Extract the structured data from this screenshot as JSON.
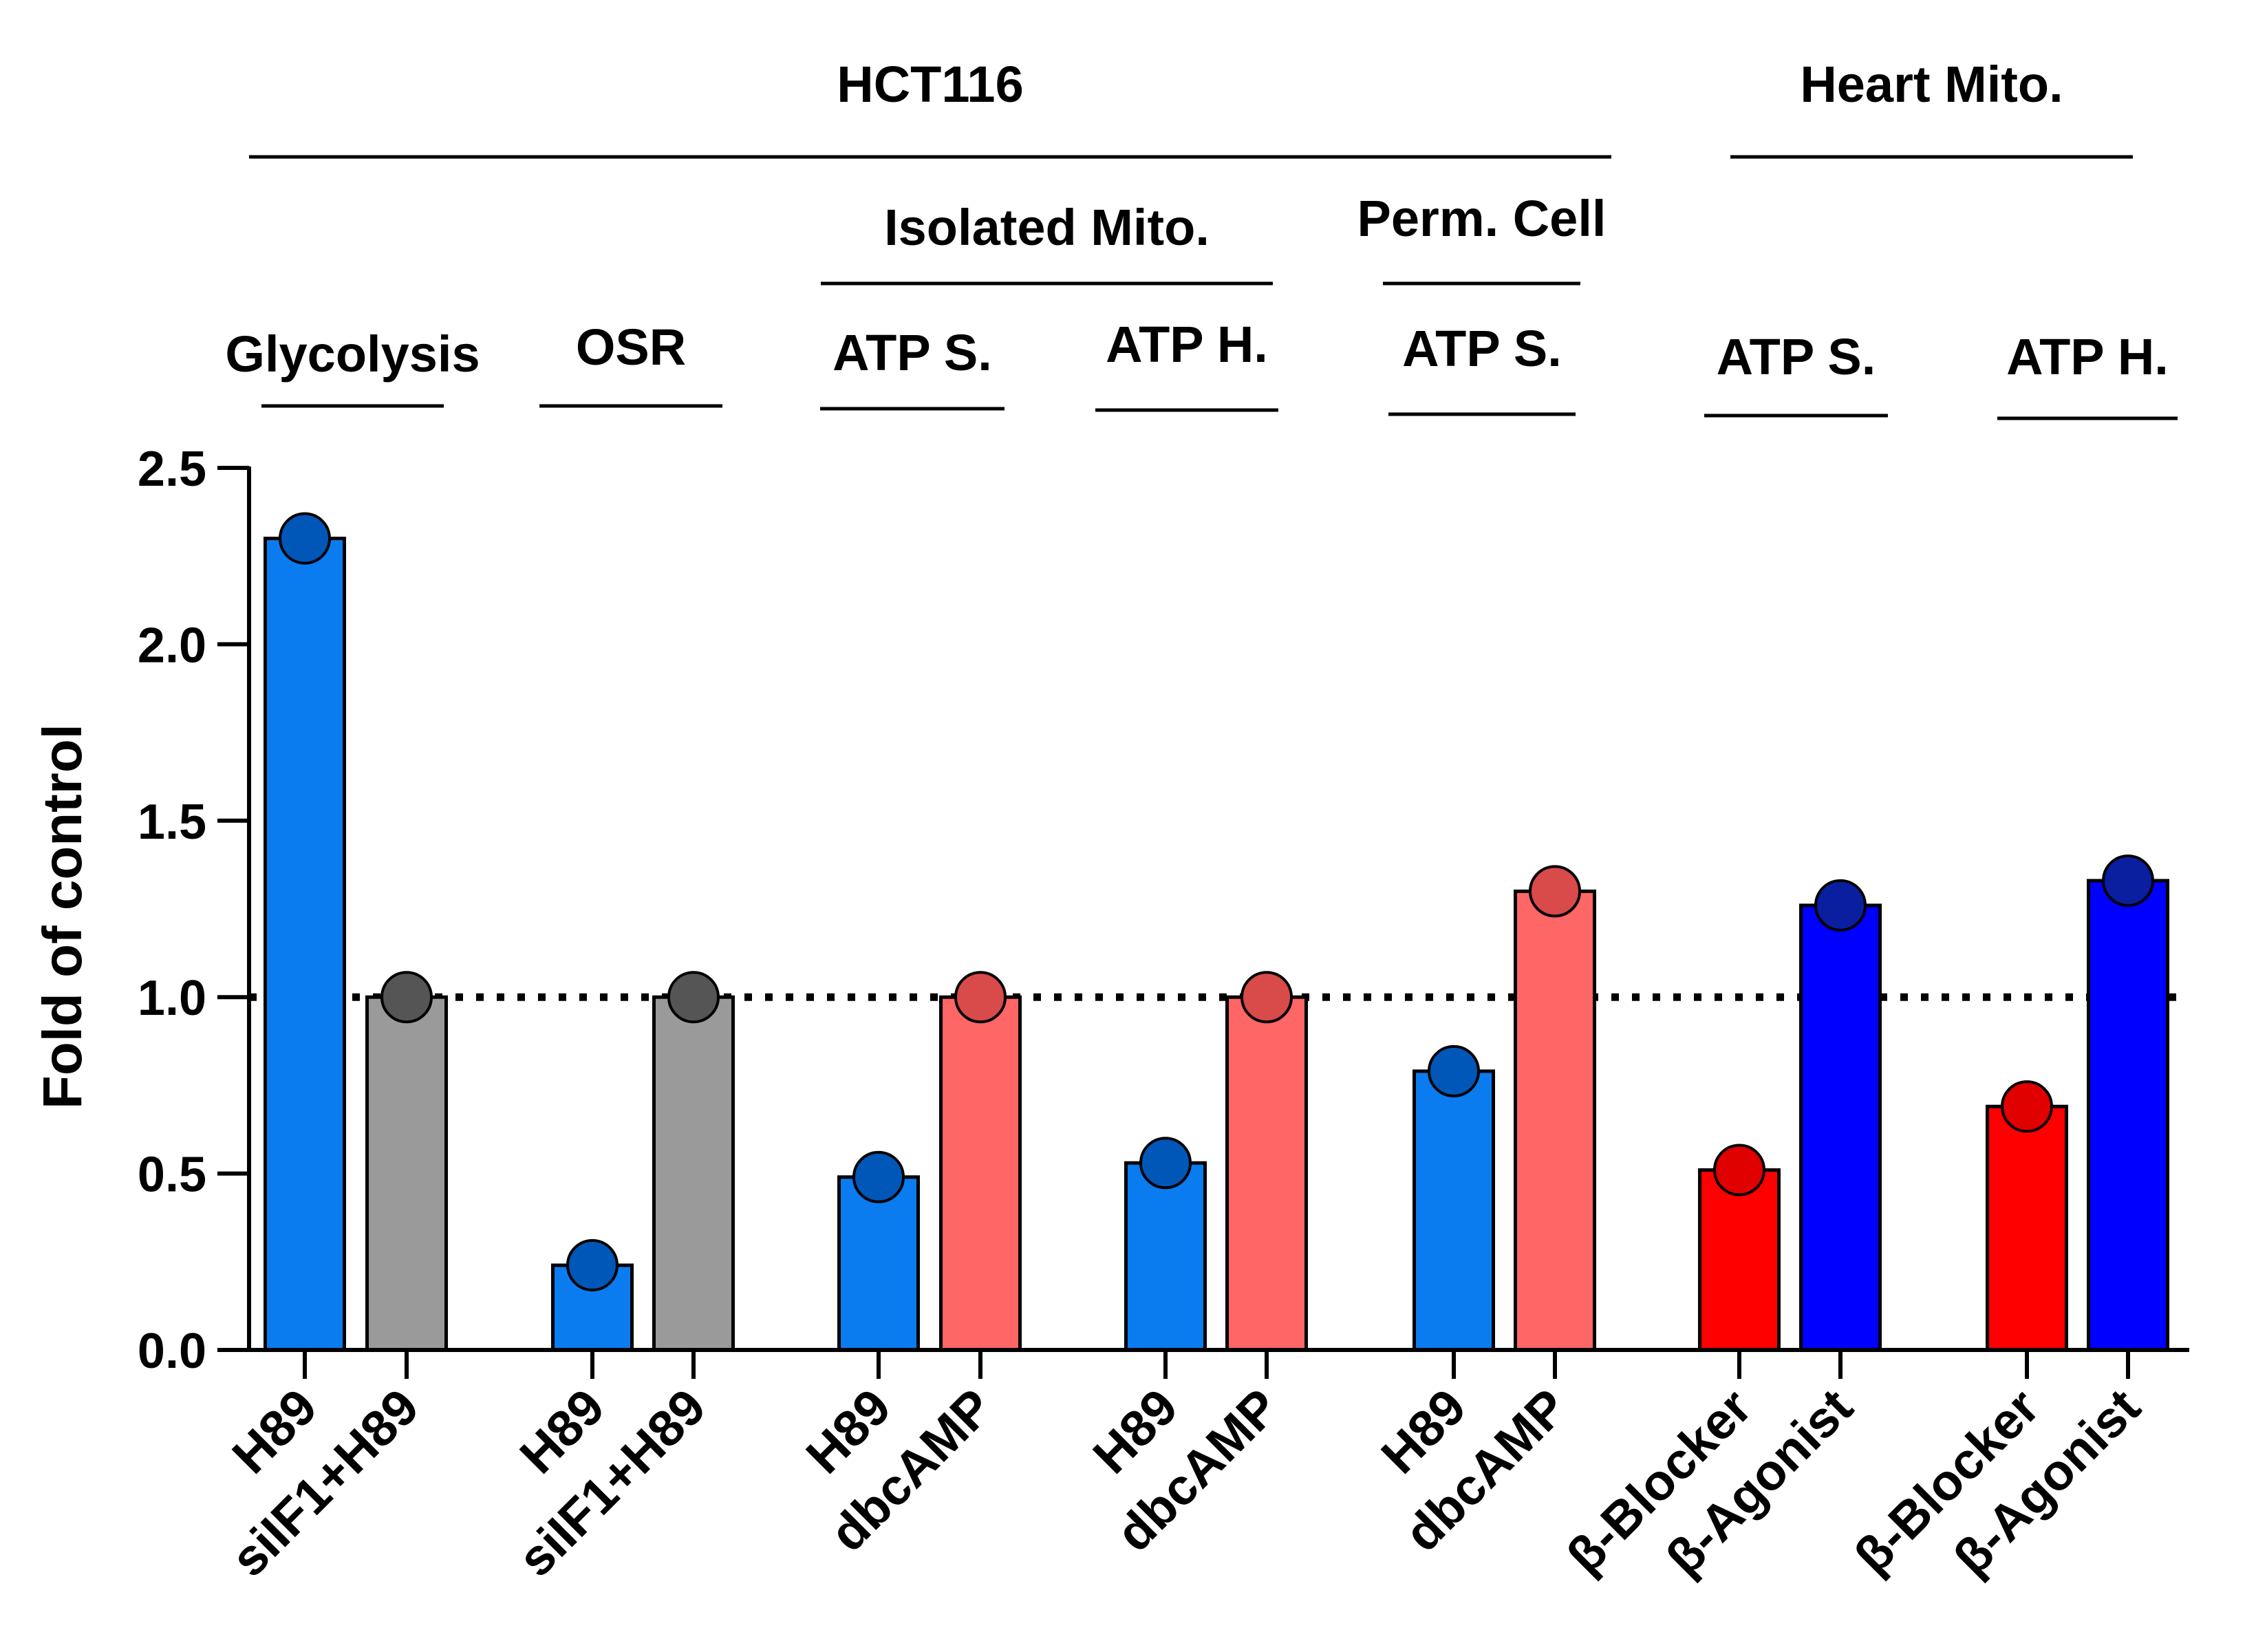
{
  "chart_data": {
    "type": "bar",
    "title": "",
    "xlabel": "",
    "ylabel": "Fold of control",
    "ylim": [
      0,
      2.5
    ],
    "yticks": [
      "0.0",
      "0.5",
      "1.0",
      "1.5",
      "2.0",
      "2.5"
    ],
    "reference_line": {
      "value": 1.0,
      "style": "dotted"
    },
    "categories": [
      "H89",
      "siIF1+H89",
      "H89",
      "siIF1+H89",
      "H89",
      "dbcAMP",
      "H89",
      "dbcAMP",
      "H89",
      "dbcAMP",
      "β-Blocker",
      "β-Agonist",
      "β-Blocker",
      "β-Agonist"
    ],
    "values": [
      2.3,
      1.0,
      0.24,
      1.0,
      0.49,
      1.0,
      0.53,
      1.0,
      0.79,
      1.3,
      0.51,
      1.26,
      0.69,
      1.33
    ],
    "bar_colors": [
      "#0a7cf0",
      "#9a9a9a",
      "#0a7cf0",
      "#9a9a9a",
      "#0a7cf0",
      "#ff6666",
      "#0a7cf0",
      "#ff6666",
      "#0a7cf0",
      "#ff6666",
      "#ff0000",
      "#0000ff",
      "#ff0000",
      "#0000ff"
    ],
    "dot_colors": [
      "#0057b8",
      "#555555",
      "#0057b8",
      "#555555",
      "#0057b8",
      "#d94a4a",
      "#0057b8",
      "#d94a4a",
      "#0057b8",
      "#d94a4a",
      "#e00000",
      "#0a1ea0",
      "#e00000",
      "#0a1ea0"
    ],
    "group_labels": [
      "Glycolysis",
      "OSR",
      "ATP S.",
      "ATP H.",
      "ATP S.",
      "ATP S.",
      "ATP H."
    ],
    "super_groups": [
      {
        "label": "Isolated Mito."
      },
      {
        "label": "Perm. Cell"
      }
    ],
    "top_groups": [
      {
        "label": "HCT116"
      },
      {
        "label": "Heart Mito."
      }
    ]
  }
}
